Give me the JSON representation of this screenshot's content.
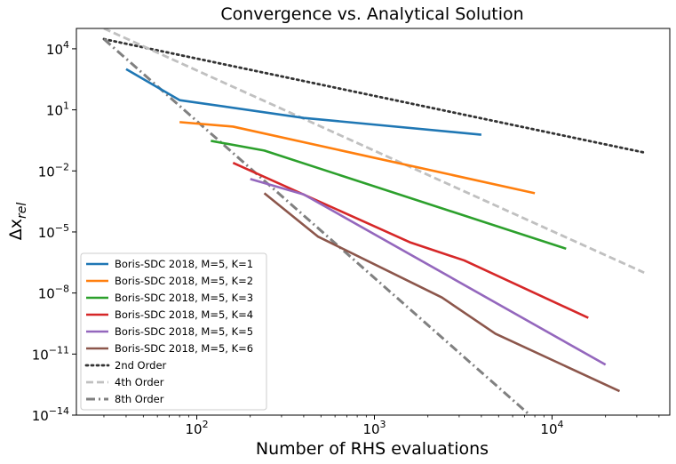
{
  "chart_data": {
    "type": "line",
    "title": "Convergence vs. Analytical Solution",
    "xlabel": "Number of RHS evaluations",
    "ylabel_base": "Δx",
    "ylabel_sub": "rel",
    "xscale": "log",
    "yscale": "log",
    "xlim": [
      21,
      46000
    ],
    "ylim": [
      1e-14,
      100000
    ],
    "x_ticks": [
      {
        "value": 100,
        "base": "10",
        "exp": "2"
      },
      {
        "value": 1000,
        "base": "10",
        "exp": "3"
      },
      {
        "value": 10000,
        "base": "10",
        "exp": "4"
      }
    ],
    "y_ticks": [
      {
        "value": 1e-14,
        "base": "10",
        "exp": "−14"
      },
      {
        "value": 1e-11,
        "base": "10",
        "exp": "−11"
      },
      {
        "value": 1e-08,
        "base": "10",
        "exp": "−8"
      },
      {
        "value": 1e-05,
        "base": "10",
        "exp": "−5"
      },
      {
        "value": 0.01,
        "base": "10",
        "exp": "−2"
      },
      {
        "value": 10,
        "base": "10",
        "exp": "1"
      },
      {
        "value": 10000,
        "base": "10",
        "exp": "4"
      }
    ],
    "grid": false,
    "legend_position": "bottom-left",
    "series": [
      {
        "name": "Boris-SDC 2018, M=5, K=1",
        "color": "#1f77b4",
        "dash": "solid",
        "x": [
          40,
          80,
          400,
          4000
        ],
        "y": [
          1000,
          30,
          4,
          0.6
        ]
      },
      {
        "name": "Boris-SDC 2018, M=5, K=2",
        "color": "#ff7f0e",
        "dash": "solid",
        "x": [
          80,
          160,
          8000
        ],
        "y": [
          2.5,
          1.5,
          0.0008
        ]
      },
      {
        "name": "Boris-SDC 2018, M=5, K=3",
        "color": "#2ca02c",
        "dash": "solid",
        "x": [
          120,
          240,
          12000
        ],
        "y": [
          0.3,
          0.1,
          1.5e-06
        ]
      },
      {
        "name": "Boris-SDC 2018, M=5, K=4",
        "color": "#d62728",
        "dash": "solid",
        "x": [
          160,
          1600,
          3200,
          16000
        ],
        "y": [
          0.025,
          3e-06,
          4e-07,
          6e-10
        ]
      },
      {
        "name": "Boris-SDC 2018, M=5, K=5",
        "color": "#9467bd",
        "dash": "solid",
        "x": [
          200,
          400,
          20000
        ],
        "y": [
          0.004,
          0.0007,
          3e-12
        ]
      },
      {
        "name": "Boris-SDC 2018, M=5, K=6",
        "color": "#8c564b",
        "dash": "solid",
        "x": [
          240,
          480,
          2400,
          4800,
          24000
        ],
        "y": [
          0.0008,
          6e-06,
          6e-09,
          1e-10,
          1.5e-13
        ]
      },
      {
        "name": "2nd Order",
        "color": "#333333",
        "dash": "dotted",
        "x": [
          30,
          33000
        ],
        "y": [
          30000,
          0.08
        ]
      },
      {
        "name": "4th Order",
        "color": "#c0c0c0",
        "dash": "dashed",
        "x": [
          30,
          33000
        ],
        "y": [
          100000,
          1e-07
        ]
      },
      {
        "name": "8th Order",
        "color": "#808080",
        "dash": "dashdot",
        "x": [
          30,
          7500
        ],
        "y": [
          30000,
          1e-14
        ]
      }
    ]
  }
}
